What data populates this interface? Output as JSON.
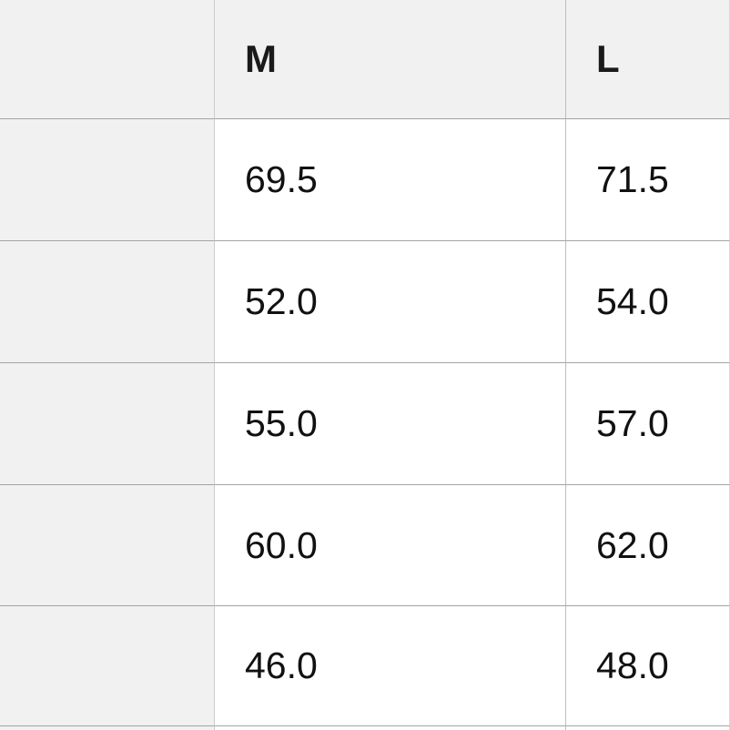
{
  "size_chart": {
    "columns": [
      {
        "key": "label",
        "label": ""
      },
      {
        "key": "m",
        "label": "M"
      },
      {
        "key": "l",
        "label": "L"
      }
    ],
    "rows": [
      {
        "m": "69.5",
        "l": "71.5"
      },
      {
        "m": "52.0",
        "l": "54.0"
      },
      {
        "m": "55.0",
        "l": "57.0"
      },
      {
        "m": "60.0",
        "l": "62.0"
      },
      {
        "m": "46.0",
        "l": "48.0"
      }
    ],
    "colors": {
      "header_bg": "#f1f1f1",
      "label_column_bg": "#f1f1f1",
      "data_cell_bg": "#ffffff",
      "horizontal_border": "#a3a3a3",
      "vertical_border_left": "#cdcdcd",
      "vertical_border_mid": "#bdbdbd",
      "text": "#111111"
    }
  }
}
